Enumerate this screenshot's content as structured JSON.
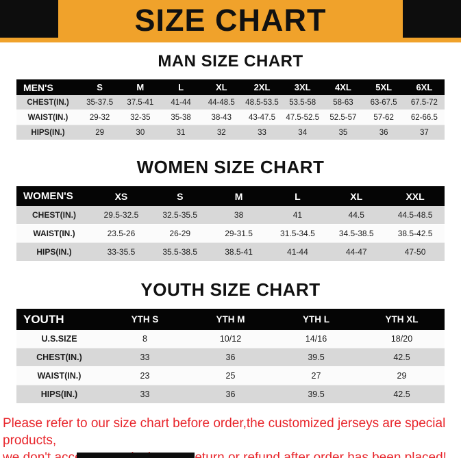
{
  "banner": {
    "title": "SIZE CHART"
  },
  "colors": {
    "banner_bg": "#F0A22B",
    "header_row_bg": "#050505",
    "zebra_gray": "#d8d8d8",
    "footer_red": "#E8252B"
  },
  "sections": [
    {
      "title": "MAN SIZE CHART",
      "table": {
        "header": [
          "MEN'S",
          "S",
          "M",
          "L",
          "XL",
          "2XL",
          "3XL",
          "4XL",
          "5XL",
          "6XL"
        ],
        "rows": [
          [
            "CHEST(IN.)",
            "35-37.5",
            "37.5-41",
            "41-44",
            "44-48.5",
            "48.5-53.5",
            "53.5-58",
            "58-63",
            "63-67.5",
            "67.5-72"
          ],
          [
            "WAIST(IN.)",
            "29-32",
            "32-35",
            "35-38",
            "38-43",
            "43-47.5",
            "47.5-52.5",
            "52.5-57",
            "57-62",
            "62-66.5"
          ],
          [
            "HIPS(IN.)",
            "29",
            "30",
            "31",
            "32",
            "33",
            "34",
            "35",
            "36",
            "37"
          ]
        ]
      }
    },
    {
      "title": "WOMEN SIZE CHART",
      "table": {
        "header": [
          "WOMEN'S",
          "XS",
          "S",
          "M",
          "L",
          "XL",
          "XXL"
        ],
        "rows": [
          [
            "CHEST(IN.)",
            "29.5-32.5",
            "32.5-35.5",
            "38",
            "41",
            "44.5",
            "44.5-48.5"
          ],
          [
            "WAIST(IN.)",
            "23.5-26",
            "26-29",
            "29-31.5",
            "31.5-34.5",
            "34.5-38.5",
            "38.5-42.5"
          ],
          [
            "HIPS(IN.)",
            "33-35.5",
            "35.5-38.5",
            "38.5-41",
            "41-44",
            "44-47",
            "47-50"
          ]
        ]
      }
    },
    {
      "title": "YOUTH SIZE CHART",
      "table": {
        "header": [
          "YOUTH",
          "YTH S",
          "YTH M",
          "YTH L",
          "YTH XL"
        ],
        "rows": [
          [
            "U.S.SIZE",
            "8",
            "10/12",
            "14/16",
            "18/20"
          ],
          [
            "CHEST(IN.)",
            "33",
            "36",
            "39.5",
            "42.5"
          ],
          [
            "WAIST(IN.)",
            "23",
            "25",
            "27",
            "29"
          ],
          [
            "HIPS(IN.)",
            "33",
            "36",
            "39.5",
            "42.5"
          ]
        ]
      }
    }
  ],
  "footer": {
    "line1": "Please refer to our size chart before order,the customized jerseys are special products,",
    "line2": "we don't accept cancel, change, teturn or refund after order has been placed!"
  }
}
